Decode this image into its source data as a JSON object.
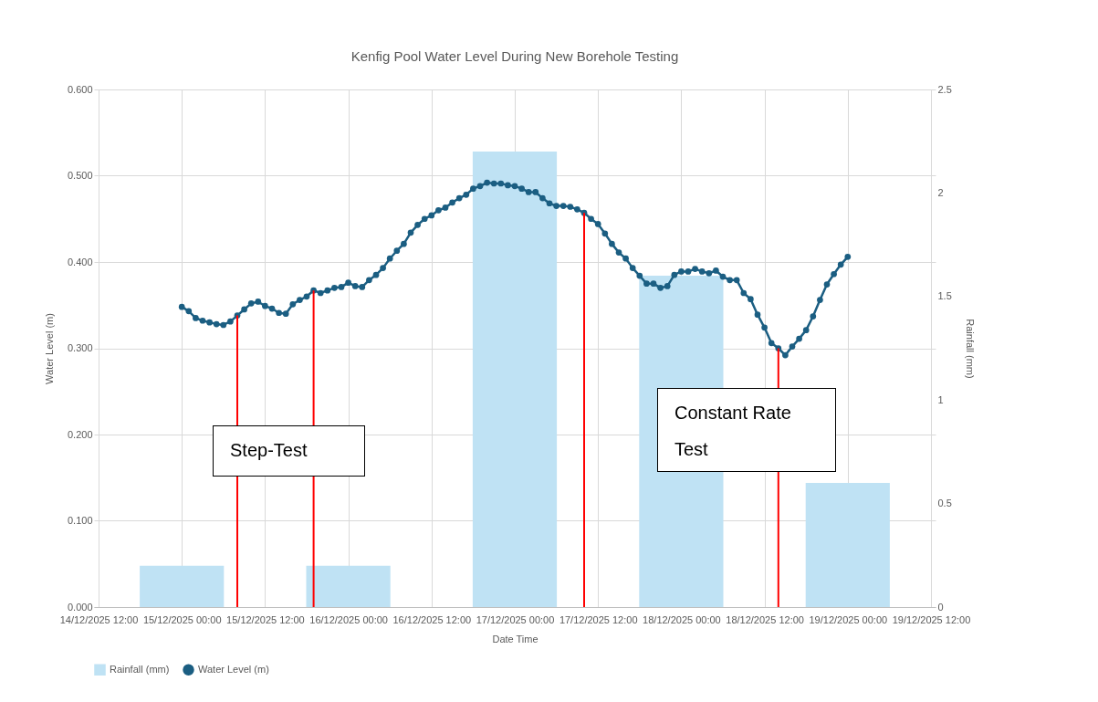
{
  "chart_data": {
    "type": "line",
    "title": "Kenfig Pool Water Level During New Borehole Testing",
    "xlabel": "Date Time",
    "ylabel": "Water Level (m)",
    "y2label": "Rainfall (mm)",
    "series": [
      {
        "name": "Rainfall (mm)",
        "type": "bar",
        "axis": "y2",
        "color": "#bfe2f4",
        "x": [
          "2025-12-15T00:00",
          "2025-12-16T00:00",
          "2025-12-17T00:00",
          "2025-12-18T00:00",
          "2025-12-19T00:00"
        ],
        "values": [
          0.2,
          0.2,
          2.2,
          1.6,
          0.6
        ]
      },
      {
        "name": "Water Level (m)",
        "color": "#1b5e82",
        "x": [
          "2025-12-15T00:00",
          "2025-12-15T01:00",
          "2025-12-15T02:00",
          "2025-12-15T03:00",
          "2025-12-15T04:00",
          "2025-12-15T05:00",
          "2025-12-15T06:00",
          "2025-12-15T07:00",
          "2025-12-15T08:00",
          "2025-12-15T09:00",
          "2025-12-15T10:00",
          "2025-12-15T11:00",
          "2025-12-15T12:00",
          "2025-12-15T13:00",
          "2025-12-15T14:00",
          "2025-12-15T15:00",
          "2025-12-15T16:00",
          "2025-12-15T17:00",
          "2025-12-15T18:00",
          "2025-12-15T19:00",
          "2025-12-15T20:00",
          "2025-12-15T21:00",
          "2025-12-15T22:00",
          "2025-12-15T23:00",
          "2025-12-16T00:00",
          "2025-12-16T01:00",
          "2025-12-16T02:00",
          "2025-12-16T03:00",
          "2025-12-16T04:00",
          "2025-12-16T05:00",
          "2025-12-16T06:00",
          "2025-12-16T07:00",
          "2025-12-16T08:00",
          "2025-12-16T09:00",
          "2025-12-16T10:00",
          "2025-12-16T11:00",
          "2025-12-16T12:00",
          "2025-12-16T13:00",
          "2025-12-16T14:00",
          "2025-12-16T15:00",
          "2025-12-16T16:00",
          "2025-12-16T17:00",
          "2025-12-16T18:00",
          "2025-12-16T19:00",
          "2025-12-16T20:00",
          "2025-12-16T21:00",
          "2025-12-16T22:00",
          "2025-12-16T23:00",
          "2025-12-17T00:00",
          "2025-12-17T01:00",
          "2025-12-17T02:00",
          "2025-12-17T03:00",
          "2025-12-17T04:00",
          "2025-12-17T05:00",
          "2025-12-17T06:00",
          "2025-12-17T07:00",
          "2025-12-17T08:00",
          "2025-12-17T09:00",
          "2025-12-17T10:00",
          "2025-12-17T11:00",
          "2025-12-17T12:00",
          "2025-12-17T13:00",
          "2025-12-17T14:00",
          "2025-12-17T15:00",
          "2025-12-17T16:00",
          "2025-12-17T17:00",
          "2025-12-17T18:00",
          "2025-12-17T19:00",
          "2025-12-17T20:00",
          "2025-12-17T21:00",
          "2025-12-17T22:00",
          "2025-12-17T23:00",
          "2025-12-18T00:00",
          "2025-12-18T01:00",
          "2025-12-18T02:00",
          "2025-12-18T03:00",
          "2025-12-18T04:00",
          "2025-12-18T05:00",
          "2025-12-18T06:00",
          "2025-12-18T07:00",
          "2025-12-18T08:00",
          "2025-12-18T09:00",
          "2025-12-18T10:00",
          "2025-12-18T11:00",
          "2025-12-18T12:00",
          "2025-12-18T13:00",
          "2025-12-18T14:00",
          "2025-12-18T15:00",
          "2025-12-18T16:00",
          "2025-12-18T17:00",
          "2025-12-18T18:00",
          "2025-12-18T19:00",
          "2025-12-18T20:00",
          "2025-12-18T21:00",
          "2025-12-18T22:00",
          "2025-12-18T23:00",
          "2025-12-19T00:00"
        ],
        "values": [
          0.348,
          0.343,
          0.335,
          0.332,
          0.33,
          0.328,
          0.327,
          0.331,
          0.338,
          0.345,
          0.352,
          0.354,
          0.349,
          0.346,
          0.341,
          0.34,
          0.351,
          0.356,
          0.36,
          0.367,
          0.364,
          0.367,
          0.37,
          0.371,
          0.376,
          0.372,
          0.371,
          0.379,
          0.385,
          0.393,
          0.404,
          0.413,
          0.421,
          0.434,
          0.443,
          0.45,
          0.454,
          0.46,
          0.463,
          0.469,
          0.474,
          0.478,
          0.485,
          0.488,
          0.492,
          0.491,
          0.491,
          0.489,
          0.488,
          0.485,
          0.481,
          0.481,
          0.474,
          0.468,
          0.465,
          0.465,
          0.464,
          0.461,
          0.457,
          0.45,
          0.444,
          0.433,
          0.421,
          0.411,
          0.404,
          0.393,
          0.384,
          0.375,
          0.375,
          0.37,
          0.372,
          0.385,
          0.389,
          0.389,
          0.392,
          0.389,
          0.387,
          0.39,
          0.383,
          0.379,
          0.379,
          0.364,
          0.357,
          0.339,
          0.324,
          0.306,
          0.3,
          0.292,
          0.302,
          0.311,
          0.321,
          0.337,
          0.356,
          0.374,
          0.386,
          0.397,
          0.406
        ]
      }
    ],
    "xlim": [
      "2025-12-14T12:00",
      "2025-12-19T12:00"
    ],
    "xticks": [
      {
        "value": "2025-12-14T12:00",
        "label": "14/12/2025 12:00"
      },
      {
        "value": "2025-12-15T00:00",
        "label": "15/12/2025 00:00"
      },
      {
        "value": "2025-12-15T12:00",
        "label": "15/12/2025 12:00"
      },
      {
        "value": "2025-12-16T00:00",
        "label": "16/12/2025 00:00"
      },
      {
        "value": "2025-12-16T12:00",
        "label": "16/12/2025 12:00"
      },
      {
        "value": "2025-12-17T00:00",
        "label": "17/12/2025 00:00"
      },
      {
        "value": "2025-12-17T12:00",
        "label": "17/12/2025 12:00"
      },
      {
        "value": "2025-12-18T00:00",
        "label": "18/12/2025 00:00"
      },
      {
        "value": "2025-12-18T12:00",
        "label": "18/12/2025 12:00"
      },
      {
        "value": "2025-12-19T00:00",
        "label": "19/12/2025 00:00"
      },
      {
        "value": "2025-12-19T12:00",
        "label": "19/12/2025 12:00"
      }
    ],
    "ylim": [
      0,
      0.6
    ],
    "yticks": [
      {
        "value": 0,
        "label": "0.000"
      },
      {
        "value": 0.1,
        "label": "0.100"
      },
      {
        "value": 0.2,
        "label": "0.200"
      },
      {
        "value": 0.3,
        "label": "0.300"
      },
      {
        "value": 0.4,
        "label": "0.400"
      },
      {
        "value": 0.5,
        "label": "0.500"
      },
      {
        "value": 0.6,
        "label": "0.600"
      }
    ],
    "y2lim": [
      0,
      2.5
    ],
    "y2ticks": [
      0,
      0.5,
      1,
      1.5,
      2,
      2.5
    ],
    "ref_lines": [
      {
        "axis": "x",
        "value": "2025-12-15T08:00",
        "color": "#ff0000"
      },
      {
        "axis": "x",
        "value": "2025-12-15T19:00",
        "color": "#ff0000"
      },
      {
        "axis": "x",
        "value": "2025-12-17T10:00",
        "color": "#ff0000"
      },
      {
        "axis": "x",
        "value": "2025-12-18T14:00",
        "color": "#ff0000"
      }
    ],
    "annotations": [
      "Step-Test",
      "Constant Rate Test"
    ],
    "grid": true,
    "legend": "bottom",
    "marker": "circle",
    "line_style": "solid"
  }
}
